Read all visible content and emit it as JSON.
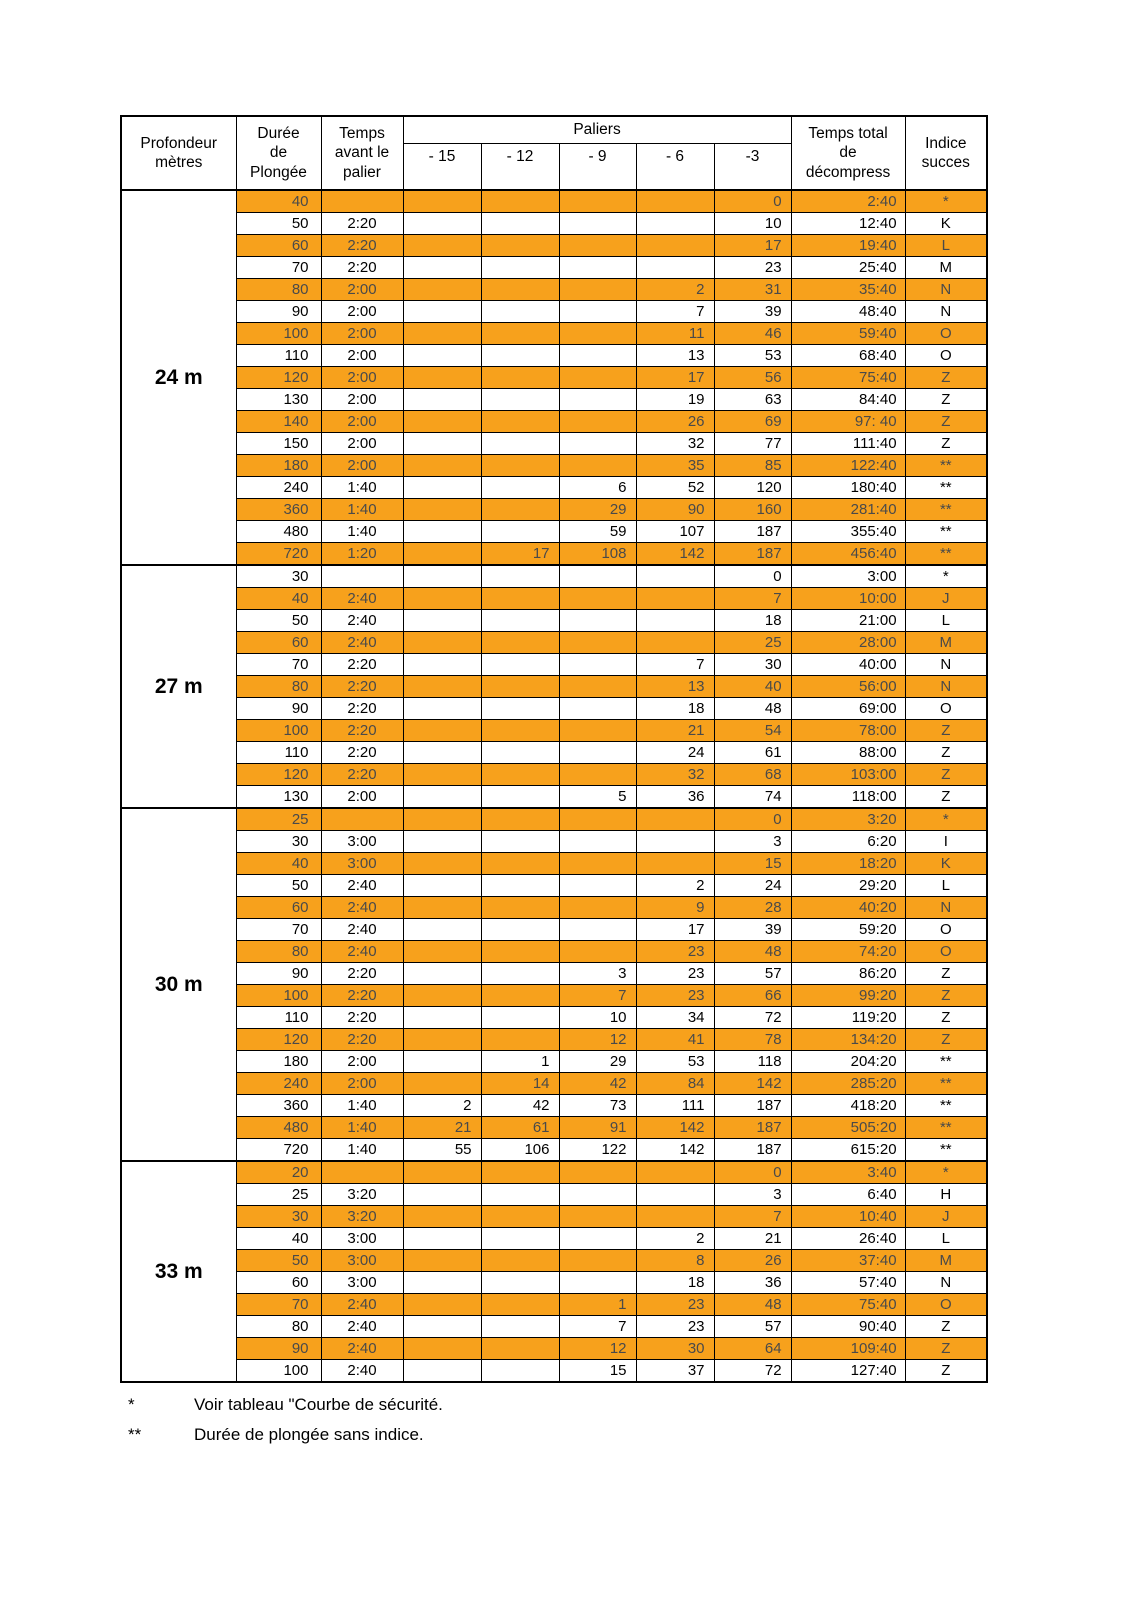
{
  "table": {
    "headers": {
      "depth": "Profondeur\nmètres",
      "duration": "Durée\nde\nPlongée",
      "before": "Temps\navant le\npalier",
      "paliers": "Paliers",
      "palier_cols": [
        "- 15",
        "- 12",
        "- 9",
        "- 6",
        "-3"
      ],
      "total": "Temps total\nde\ndécompress",
      "index": "Indice\nsucces"
    },
    "sections": [
      {
        "depth": "24 m",
        "rows": [
          [
            "40",
            "",
            "",
            "",
            "",
            "",
            "0",
            "2:40",
            "*"
          ],
          [
            "50",
            "2:20",
            "",
            "",
            "",
            "",
            "10",
            "12:40",
            "K"
          ],
          [
            "60",
            "2:20",
            "",
            "",
            "",
            "",
            "17",
            "19:40",
            "L"
          ],
          [
            "70",
            "2:20",
            "",
            "",
            "",
            "",
            "23",
            "25:40",
            "M"
          ],
          [
            "80",
            "2:00",
            "",
            "",
            "",
            "2",
            "31",
            "35:40",
            "N"
          ],
          [
            "90",
            "2:00",
            "",
            "",
            "",
            "7",
            "39",
            "48:40",
            "N"
          ],
          [
            "100",
            "2:00",
            "",
            "",
            "",
            "11",
            "46",
            "59:40",
            "O"
          ],
          [
            "110",
            "2:00",
            "",
            "",
            "",
            "13",
            "53",
            "68:40",
            "O"
          ],
          [
            "120",
            "2:00",
            "",
            "",
            "",
            "17",
            "56",
            "75:40",
            "Z"
          ],
          [
            "130",
            "2:00",
            "",
            "",
            "",
            "19",
            "63",
            "84:40",
            "Z"
          ],
          [
            "140",
            "2:00",
            "",
            "",
            "",
            "26",
            "69",
            "97: 40",
            "Z"
          ],
          [
            "150",
            "2:00",
            "",
            "",
            "",
            "32",
            "77",
            "111:40",
            "Z"
          ],
          [
            "180",
            "2:00",
            "",
            "",
            "",
            "35",
            "85",
            "122:40",
            "**"
          ],
          [
            "240",
            "1:40",
            "",
            "",
            "6",
            "52",
            "120",
            "180:40",
            "**"
          ],
          [
            "360",
            "1:40",
            "",
            "",
            "29",
            "90",
            "160",
            "281:40",
            "**"
          ],
          [
            "480",
            "1:40",
            "",
            "",
            "59",
            "107",
            "187",
            "355:40",
            "**"
          ],
          [
            "720",
            "1:20",
            "",
            "17",
            "108",
            "142",
            "187",
            "456:40",
            "**"
          ]
        ]
      },
      {
        "depth": "27 m",
        "rows": [
          [
            "30",
            "",
            "",
            "",
            "",
            "",
            "0",
            "3:00",
            "*"
          ],
          [
            "40",
            "2:40",
            "",
            "",
            "",
            "",
            "7",
            "10:00",
            "J"
          ],
          [
            "50",
            "2:40",
            "",
            "",
            "",
            "",
            "18",
            "21:00",
            "L"
          ],
          [
            "60",
            "2:40",
            "",
            "",
            "",
            "",
            "25",
            "28:00",
            "M"
          ],
          [
            "70",
            "2:20",
            "",
            "",
            "",
            "7",
            "30",
            "40:00",
            "N"
          ],
          [
            "80",
            "2:20",
            "",
            "",
            "",
            "13",
            "40",
            "56:00",
            "N"
          ],
          [
            "90",
            "2:20",
            "",
            "",
            "",
            "18",
            "48",
            "69:00",
            "O"
          ],
          [
            "100",
            "2:20",
            "",
            "",
            "",
            "21",
            "54",
            "78:00",
            "Z"
          ],
          [
            "110",
            "2:20",
            "",
            "",
            "",
            "24",
            "61",
            "88:00",
            "Z"
          ],
          [
            "120",
            "2:20",
            "",
            "",
            "",
            "32",
            "68",
            "103:00",
            "Z"
          ],
          [
            "130",
            "2:00",
            "",
            "",
            "5",
            "36",
            "74",
            "118:00",
            "Z"
          ]
        ]
      },
      {
        "depth": "30 m",
        "rows": [
          [
            "25",
            "",
            "",
            "",
            "",
            "",
            "0",
            "3:20",
            "*"
          ],
          [
            "30",
            "3:00",
            "",
            "",
            "",
            "",
            "3",
            "6:20",
            "I"
          ],
          [
            "40",
            "3:00",
            "",
            "",
            "",
            "",
            "15",
            "18:20",
            "K"
          ],
          [
            "50",
            "2:40",
            "",
            "",
            "",
            "2",
            "24",
            "29:20",
            "L"
          ],
          [
            "60",
            "2:40",
            "",
            "",
            "",
            "9",
            "28",
            "40:20",
            "N"
          ],
          [
            "70",
            "2:40",
            "",
            "",
            "",
            "17",
            "39",
            "59:20",
            "O"
          ],
          [
            "80",
            "2:40",
            "",
            "",
            "",
            "23",
            "48",
            "74:20",
            "O"
          ],
          [
            "90",
            "2:20",
            "",
            "",
            "3",
            "23",
            "57",
            "86:20",
            "Z"
          ],
          [
            "100",
            "2:20",
            "",
            "",
            "7",
            "23",
            "66",
            "99:20",
            "Z"
          ],
          [
            "110",
            "2:20",
            "",
            "",
            "10",
            "34",
            "72",
            "119:20",
            "Z"
          ],
          [
            "120",
            "2:20",
            "",
            "",
            "12",
            "41",
            "78",
            "134:20",
            "Z"
          ],
          [
            "180",
            "2:00",
            "",
            "1",
            "29",
            "53",
            "118",
            "204:20",
            "**"
          ],
          [
            "240",
            "2:00",
            "",
            "14",
            "42",
            "84",
            "142",
            "285:20",
            "**"
          ],
          [
            "360",
            "1:40",
            "2",
            "42",
            "73",
            "111",
            "187",
            "418:20",
            "**"
          ],
          [
            "480",
            "1:40",
            "21",
            "61",
            "91",
            "142",
            "187",
            "505:20",
            "**"
          ],
          [
            "720",
            "1:40",
            "55",
            "106",
            "122",
            "142",
            "187",
            "615:20",
            "**"
          ]
        ]
      },
      {
        "depth": "33 m",
        "rows": [
          [
            "20",
            "",
            "",
            "",
            "",
            "",
            "0",
            "3:40",
            "*"
          ],
          [
            "25",
            "3:20",
            "",
            "",
            "",
            "",
            "3",
            "6:40",
            "H"
          ],
          [
            "30",
            "3:20",
            "",
            "",
            "",
            "",
            "7",
            "10:40",
            "J"
          ],
          [
            "40",
            "3:00",
            "",
            "",
            "",
            "2",
            "21",
            "26:40",
            "L"
          ],
          [
            "50",
            "3:00",
            "",
            "",
            "",
            "8",
            "26",
            "37:40",
            "M"
          ],
          [
            "60",
            "3:00",
            "",
            "",
            "",
            "18",
            "36",
            "57:40",
            "N"
          ],
          [
            "70",
            "2:40",
            "",
            "",
            "1",
            "23",
            "48",
            "75:40",
            "O"
          ],
          [
            "80",
            "2:40",
            "",
            "",
            "7",
            "23",
            "57",
            "90:40",
            "Z"
          ],
          [
            "90",
            "2:40",
            "",
            "",
            "12",
            "30",
            "64",
            "109:40",
            "Z"
          ],
          [
            "100",
            "2:40",
            "",
            "",
            "15",
            "37",
            "72",
            "127:40",
            "Z"
          ]
        ]
      }
    ]
  },
  "footnotes": [
    {
      "mark": "*",
      "text": "Voir tableau \"Courbe de sécurité."
    },
    {
      "mark": "**",
      "text": "Durée de plongée sans indice."
    }
  ],
  "colors": {
    "row_orange": "#F7A11C",
    "border": "#000000"
  }
}
